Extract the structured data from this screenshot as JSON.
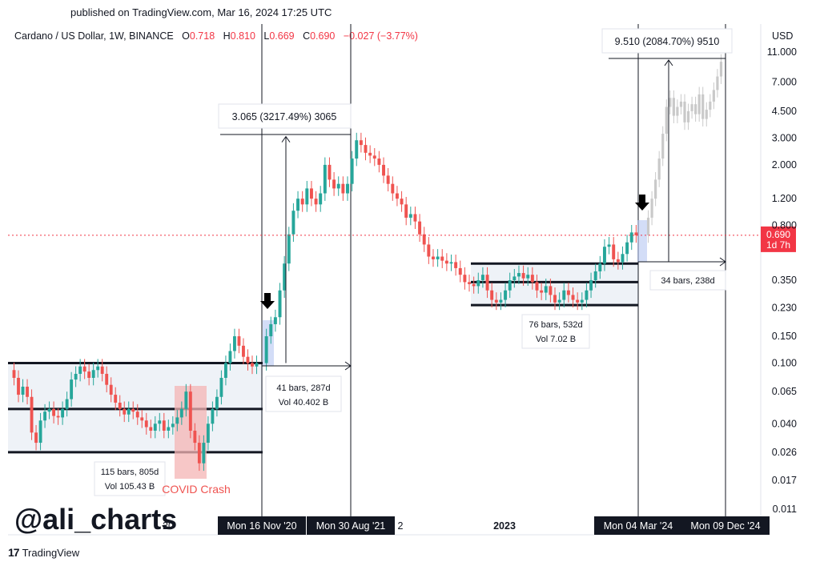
{
  "header": {
    "published": "published on TradingView.com, Mar 16, 2024 17:25 UTC",
    "symbol": "Cardano / US Dollar, 1W, BINANCE",
    "open_label": "O",
    "open": "0.718",
    "high_label": "H",
    "high": "0.810",
    "low_label": "L",
    "low": "0.669",
    "close_label": "C",
    "close": "0.690",
    "change": "−0.027 (−3.77%)",
    "currency": "USD"
  },
  "watermark": "@ali_charts",
  "footer_brand": "TradingView",
  "colors": {
    "up": "#26a69a",
    "down": "#ef5350",
    "price_line": "#f23645",
    "box_fill": "#eef2f7",
    "covid": "#f4b4b4",
    "highlight": "#b5c6f2"
  },
  "chart_data": {
    "type": "candlestick",
    "title": "Cardano / US Dollar, 1W, BINANCE",
    "y_scale": "log",
    "y_ticks": [
      "11.000",
      "7.000",
      "4.500",
      "3.000",
      "2.000",
      "1.200",
      "0.800",
      "0.350",
      "0.230",
      "0.150",
      "0.100",
      "0.065",
      "0.040",
      "0.026",
      "0.017",
      "0.011"
    ],
    "x_labels": [
      "20",
      "Mon 16 Nov '20",
      "Mon 30 Aug '21",
      "2",
      "2023",
      "Mon 04 Mar '24",
      "Mon 09 Dec '24"
    ],
    "current_price": "0.690",
    "current_countdown": "1d 7h",
    "ranges": [
      {
        "label": "115 bars, 805d",
        "vol": "Vol 105.43 B",
        "low": 0.026,
        "mid": 0.05,
        "high": 0.1
      },
      {
        "label": "76 bars, 532d",
        "vol": "Vol 7.02 B",
        "low": 0.24,
        "mid": 0.34,
        "high": 0.45
      }
    ],
    "projections": [
      {
        "label": "3.065 (3217.49%) 3065",
        "bars": "41 bars, 287d",
        "vol": "Vol 40.402 B",
        "from": 0.1,
        "to": 3.065
      },
      {
        "label": "9.510 (2084.70%) 9510",
        "bars": "34 bars, 238d",
        "from": 0.45,
        "to": 9.96
      }
    ],
    "annotations": [
      "COVID Crash"
    ],
    "price_path": [
      [
        0.09,
        0.08,
        0.062,
        0.07,
        0.06,
        0.035,
        0.03,
        0.042,
        0.048,
        0.05,
        0.045,
        0.044,
        0.05,
        0.058,
        0.078,
        0.085,
        0.095,
        0.088,
        0.08,
        0.09,
        0.095,
        0.085,
        0.072,
        0.062,
        0.055,
        0.05,
        0.046,
        0.05,
        0.048,
        0.044,
        0.042,
        0.038,
        0.036,
        0.04,
        0.042,
        0.036,
        0.038,
        0.04,
        0.044,
        0.05,
        0.065,
        0.036,
        0.03,
        0.022,
        0.03,
        0.04,
        0.05,
        0.06,
        0.08,
        0.1,
        0.12,
        0.15,
        0.13,
        0.11,
        0.1,
        0.095,
        0.1
      ],
      [
        0.1,
        0.15,
        0.18,
        0.2,
        0.3,
        0.45,
        0.7,
        1.0,
        1.2,
        1.1,
        1.4,
        1.2,
        1.1,
        1.3,
        2.0,
        1.6,
        1.4,
        1.5,
        1.3,
        1.5,
        2.2,
        2.9,
        2.7,
        2.4,
        2.3,
        2.2,
        2.0,
        1.7,
        1.5,
        1.3,
        1.2,
        1.1,
        0.9,
        0.95,
        0.85,
        0.7,
        0.6,
        0.5,
        0.48,
        0.5,
        0.47,
        0.45,
        0.46,
        0.42,
        0.38,
        0.34,
        0.33,
        0.32,
        0.35,
        0.38,
        0.3,
        0.26,
        0.25,
        0.26,
        0.3,
        0.35,
        0.37,
        0.39,
        0.36,
        0.38,
        0.34,
        0.3,
        0.29,
        0.32,
        0.28,
        0.25,
        0.26,
        0.3,
        0.28,
        0.26,
        0.25,
        0.26,
        0.3,
        0.35,
        0.4,
        0.45,
        0.58,
        0.6,
        0.48,
        0.46,
        0.52,
        0.62,
        0.72,
        0.69
      ],
      [
        0.69,
        0.9,
        1.2,
        1.6,
        2.2,
        3.2,
        4.8,
        5.5,
        4.2,
        4.8,
        5.2,
        3.8,
        4.5,
        5.0,
        4.3,
        5.8,
        4.0,
        4.6,
        5.2,
        6.2,
        7.6,
        9.5
      ]
    ]
  }
}
